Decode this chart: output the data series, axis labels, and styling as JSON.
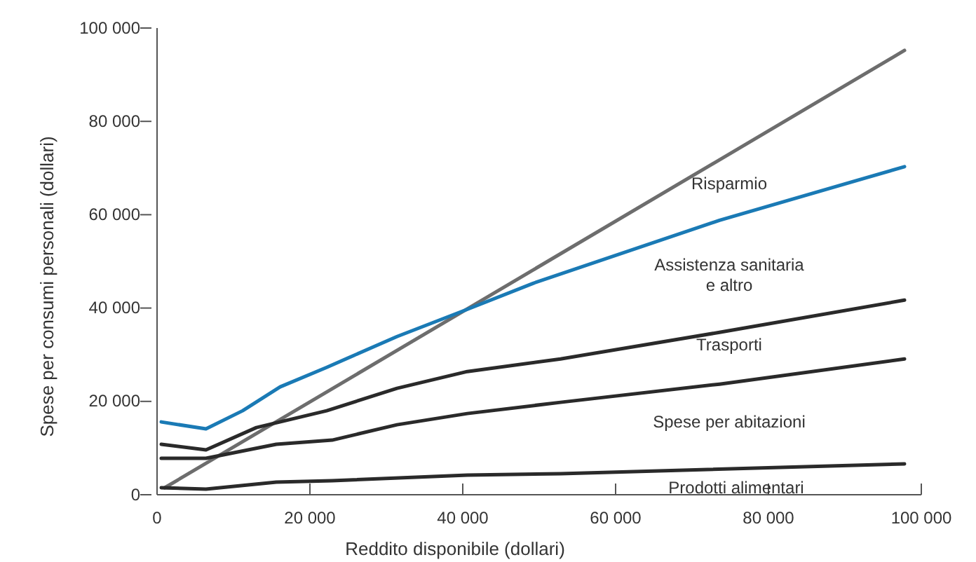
{
  "chart_data": {
    "type": "line",
    "xlabel": "Reddito disponibile (dollari)",
    "ylabel": "Spese per consumi personali (dollari)",
    "xlim": [
      0,
      100000
    ],
    "ylim": [
      0,
      100000
    ],
    "xticks": [
      0,
      {
        "value": 20000,
        "label": "20 000"
      },
      {
        "value": 40000,
        "label": "40 000"
      },
      {
        "value": 60000,
        "label": "60 000"
      },
      {
        "value": 80000,
        "label": "80 000"
      },
      {
        "value": 100000,
        "label": "100 000"
      }
    ],
    "yticks": [
      0,
      {
        "value": 20000,
        "label": "20 000"
      },
      {
        "value": 40000,
        "label": "40 000"
      },
      {
        "value": 60000,
        "label": "60 000"
      },
      {
        "value": 80000,
        "label": "80 000"
      },
      {
        "value": 100000,
        "label": "100 000"
      }
    ],
    "grid": false,
    "marker": "none",
    "line_style": "solid",
    "series": [
      {
        "color": "#6d6d6d",
        "x": [
          1000,
          97800
        ],
        "values": [
          1500,
          95200
        ]
      },
      {
        "color": "#1a7ab5",
        "x": [
          550,
          6400,
          11200,
          16100,
          22200,
          31400,
          40400,
          49200,
          73600,
          97800
        ],
        "values": [
          15600,
          14100,
          18000,
          23100,
          27300,
          33900,
          39600,
          45300,
          58800,
          70300
        ]
      },
      {
        "color": "#2a2a2a",
        "x": [
          550,
          6400,
          13000,
          22200,
          31400,
          40600,
          52800,
          73600,
          97800
        ],
        "values": [
          10800,
          9600,
          14400,
          18000,
          22800,
          26400,
          29100,
          34800,
          41700
        ]
      },
      {
        "color": "#2a2a2a",
        "x": [
          550,
          6400,
          15600,
          22900,
          31400,
          40600,
          52800,
          73600,
          97800
        ],
        "values": [
          7800,
          7800,
          10800,
          11700,
          15000,
          17400,
          19800,
          23700,
          29100
        ]
      },
      {
        "color": "#2a2a2a",
        "x": [
          550,
          6400,
          15600,
          22900,
          40600,
          52800,
          97800
        ],
        "values": [
          1500,
          1200,
          2700,
          3000,
          4200,
          4500,
          6600
        ]
      }
    ],
    "annotations": [
      "Risparmio",
      "Assistenza sanitaria\ne altro",
      "Trasporti",
      "Spese per abitazioni",
      "Prodotti alimentari"
    ]
  }
}
